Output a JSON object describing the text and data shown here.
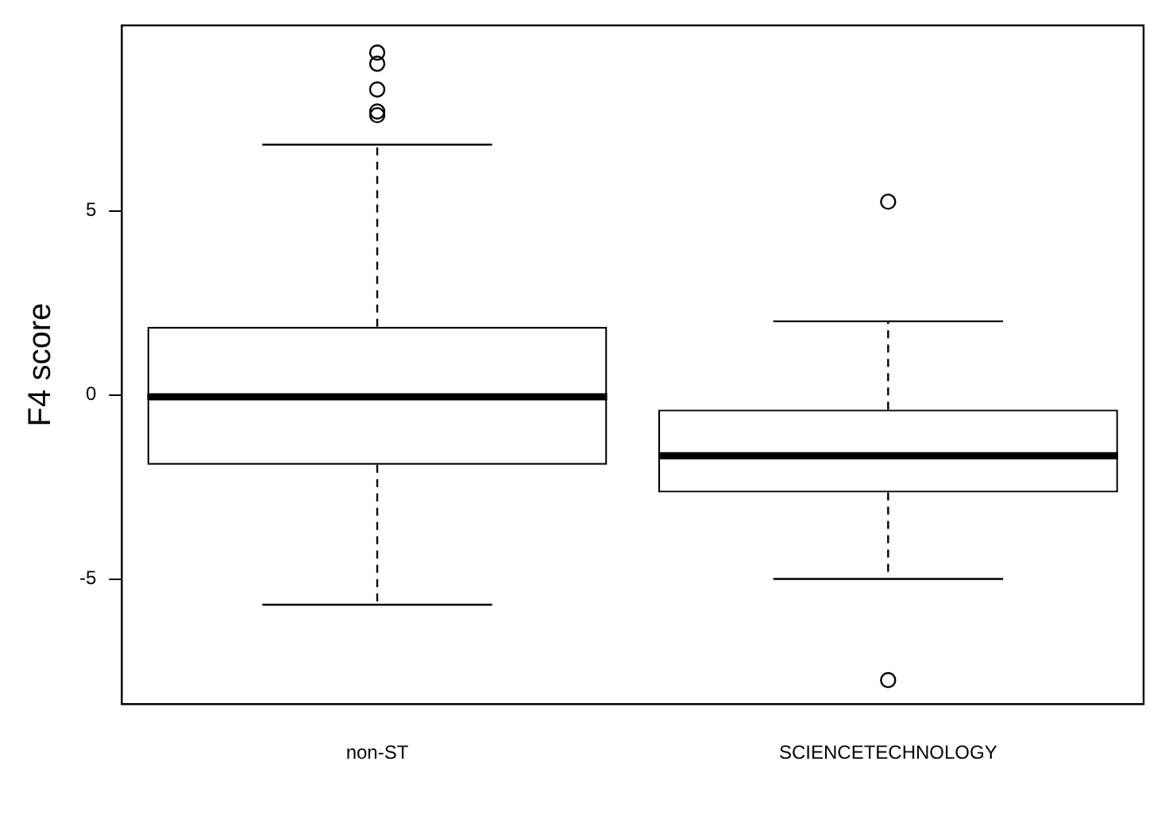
{
  "chart_data": {
    "type": "box",
    "ylabel": "F4 score",
    "categories": [
      "non-ST",
      "SCIENCETECHNOLOGY"
    ],
    "boxes": [
      {
        "low": -5.7,
        "q1": -1.9,
        "median": -0.05,
        "q3": 1.85,
        "high": 6.8,
        "outliers": [
          9.3,
          9.0,
          8.3,
          7.7,
          7.6
        ]
      },
      {
        "low": -5.0,
        "q1": -2.65,
        "median": -1.65,
        "q3": -0.4,
        "high": 2.0,
        "outliers": [
          5.25,
          -7.75
        ]
      }
    ],
    "ylim": [
      -8.4,
      10.04
    ],
    "yticks": [
      -5,
      0,
      5
    ],
    "grid": false,
    "legend": false
  }
}
